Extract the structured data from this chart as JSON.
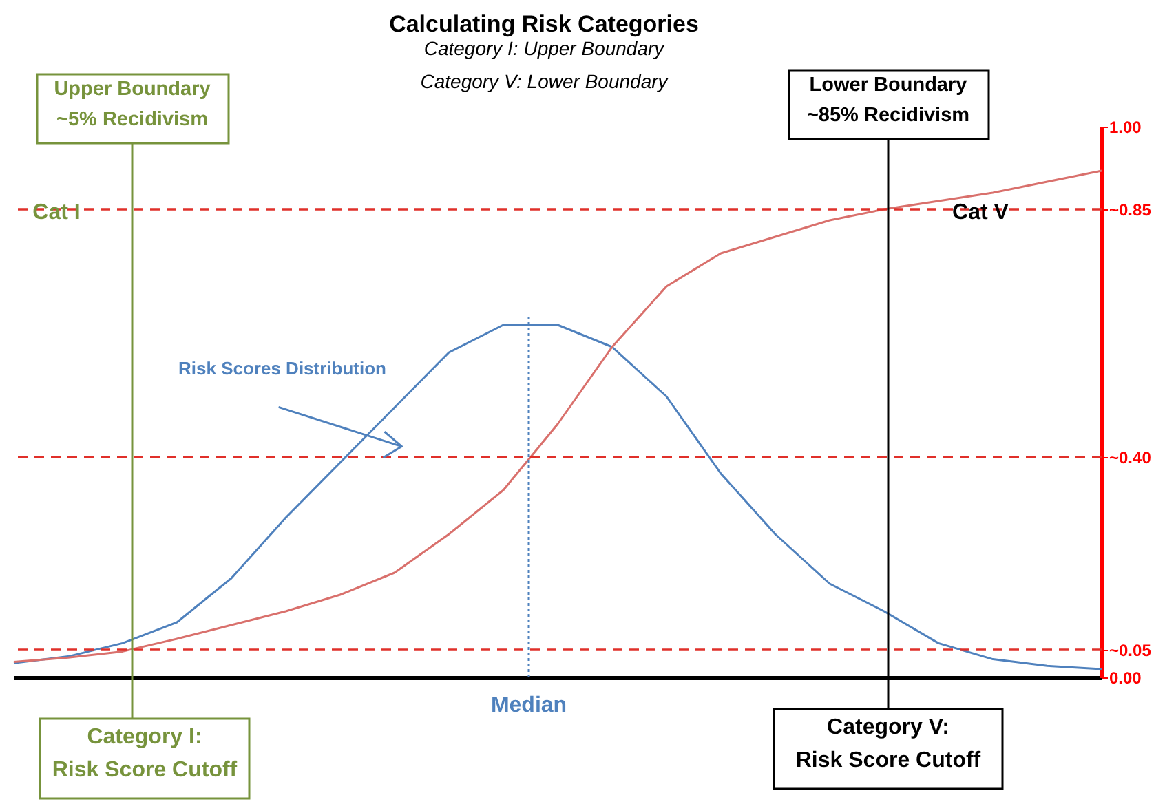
{
  "chart_data": {
    "type": "line",
    "title": "Calculating  Risk Categories",
    "subtitle": "Category I: Upper Boundary\nCategory V: Lower Boundary",
    "tick_labels": "y",
    "line_style": "solid",
    "categories": [
      null,
      null,
      null,
      null,
      null,
      null,
      null,
      null,
      null,
      null,
      null,
      null,
      null,
      null,
      null,
      null,
      null,
      null,
      null,
      null,
      null
    ],
    "ylim": [
      0,
      1
    ],
    "yticks": [
      {
        "value": 0,
        "label": "0.00"
      },
      {
        "value": 0.05,
        "label": "~0.05"
      },
      {
        "value": 0.4,
        "label": "~0.40"
      },
      {
        "value": 0.85,
        "label": "~0.85"
      },
      {
        "value": 1,
        "label": "1.00"
      }
    ],
    "series": [
      {
        "color": "#4f81bd",
        "values": [
          0.026,
          0.038,
          0.062,
          0.1,
          0.18,
          0.29,
          0.39,
          0.49,
          0.59,
          0.64,
          0.64,
          0.6,
          0.51,
          0.37,
          0.26,
          0.17,
          0.12,
          0.062,
          0.033,
          0.021,
          0.015
        ]
      },
      {
        "color": "#d9706c",
        "values": [
          0.028,
          0.036,
          0.047,
          0.07,
          0.095,
          0.12,
          0.15,
          0.19,
          0.26,
          0.34,
          0.46,
          0.6,
          0.71,
          0.77,
          0.8,
          0.83,
          0.85,
          0.865,
          0.88,
          0.9,
          0.92
        ]
      }
    ],
    "ref_lines": [
      {
        "axis": "y",
        "value": 0.85,
        "color": "#e0302a",
        "line_style": "dashed"
      },
      {
        "axis": "y",
        "value": 0.4,
        "color": "#e0302a",
        "line_style": "dashed"
      },
      {
        "axis": "y",
        "value": 0.05,
        "color": "#e0302a",
        "line_style": "dashed"
      }
    ],
    "annotations": [
      "Upper Boundary\n~5% Recidivism",
      "Cat I",
      "Risk Scores Distribution",
      "Lower Boundary\n~85% Recidivism",
      "Cat  V",
      "Category I:\nRisk Score Cutoff",
      "Category V:\nRisk Score Cutoff",
      "Median"
    ]
  }
}
